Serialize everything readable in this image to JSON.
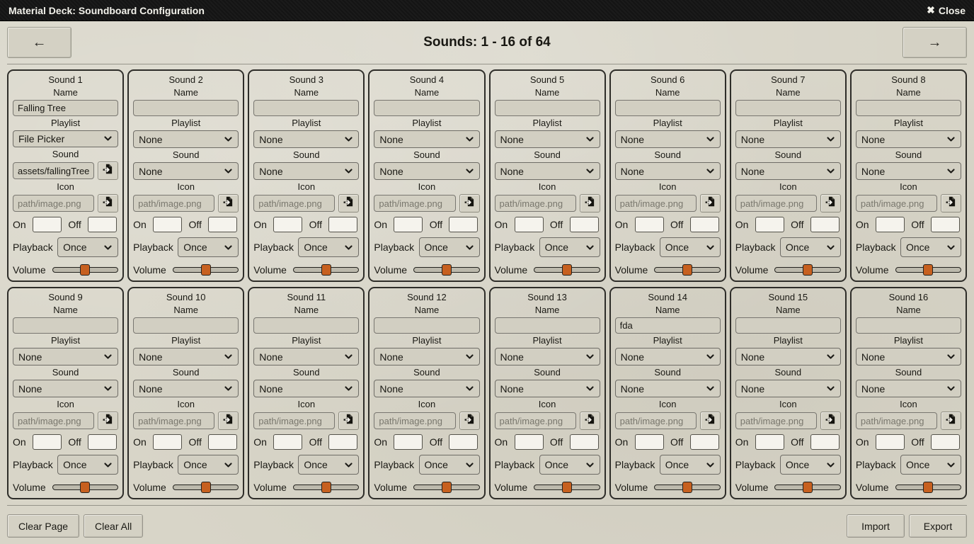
{
  "window": {
    "title": "Material Deck: Soundboard Configuration",
    "close_icon": "✖",
    "close_label": "Close"
  },
  "nav": {
    "prev_icon": "←",
    "next_icon": "→",
    "title": "Sounds: 1 - 16 of 64"
  },
  "labels": {
    "name": "Name",
    "playlist": "Playlist",
    "sound": "Sound",
    "icon": "Icon",
    "on": "On",
    "off": "Off",
    "playback": "Playback",
    "volume": "Volume"
  },
  "defaults": {
    "icon_placeholder": "path/image.png"
  },
  "footer": {
    "clear_page": "Clear Page",
    "clear_all": "Clear All",
    "import": "Import",
    "export": "Export"
  },
  "colors": {
    "on_active_green": "#2ce02c",
    "swatch_black": "#000000",
    "slider_thumb_orange": "#c7601f"
  },
  "sounds": [
    {
      "title": "Sound 1",
      "name": "Falling Tree",
      "playlist": "File Picker",
      "sound_mode": "file",
      "sound_file": "assets/fallingTree",
      "sound_option": "None",
      "on_color": "#2ce02c",
      "off_color": "#000000",
      "playback": "Once",
      "volume": 50
    },
    {
      "title": "Sound 2",
      "name": "",
      "playlist": "None",
      "sound_mode": "select",
      "sound_file": "",
      "sound_option": "None",
      "on_color": "#000000",
      "off_color": "#000000",
      "playback": "Once",
      "volume": 50
    },
    {
      "title": "Sound 3",
      "name": "",
      "playlist": "None",
      "sound_mode": "select",
      "sound_file": "",
      "sound_option": "None",
      "on_color": "#000000",
      "off_color": "#000000",
      "playback": "Once",
      "volume": 50
    },
    {
      "title": "Sound 4",
      "name": "",
      "playlist": "None",
      "sound_mode": "select",
      "sound_file": "",
      "sound_option": "None",
      "on_color": "#000000",
      "off_color": "#000000",
      "playback": "Once",
      "volume": 50
    },
    {
      "title": "Sound 5",
      "name": "",
      "playlist": "None",
      "sound_mode": "select",
      "sound_file": "",
      "sound_option": "None",
      "on_color": "#000000",
      "off_color": "#000000",
      "playback": "Once",
      "volume": 50
    },
    {
      "title": "Sound 6",
      "name": "",
      "playlist": "None",
      "sound_mode": "select",
      "sound_file": "",
      "sound_option": "None",
      "on_color": "#000000",
      "off_color": "#000000",
      "playback": "Once",
      "volume": 50
    },
    {
      "title": "Sound 7",
      "name": "",
      "playlist": "None",
      "sound_mode": "select",
      "sound_file": "",
      "sound_option": "None",
      "on_color": "#000000",
      "off_color": "#000000",
      "playback": "Once",
      "volume": 50
    },
    {
      "title": "Sound 8",
      "name": "",
      "playlist": "None",
      "sound_mode": "select",
      "sound_file": "",
      "sound_option": "None",
      "on_color": "#000000",
      "off_color": "#000000",
      "playback": "Once",
      "volume": 50
    },
    {
      "title": "Sound 9",
      "name": "",
      "playlist": "None",
      "sound_mode": "select",
      "sound_file": "",
      "sound_option": "None",
      "on_color": "#000000",
      "off_color": "#000000",
      "playback": "Once",
      "volume": 50
    },
    {
      "title": "Sound 10",
      "name": "",
      "playlist": "None",
      "sound_mode": "select",
      "sound_file": "",
      "sound_option": "None",
      "on_color": "#000000",
      "off_color": "#000000",
      "playback": "Once",
      "volume": 50
    },
    {
      "title": "Sound 11",
      "name": "",
      "playlist": "None",
      "sound_mode": "select",
      "sound_file": "",
      "sound_option": "None",
      "on_color": "#000000",
      "off_color": "#000000",
      "playback": "Once",
      "volume": 50
    },
    {
      "title": "Sound 12",
      "name": "",
      "playlist": "None",
      "sound_mode": "select",
      "sound_file": "",
      "sound_option": "None",
      "on_color": "#000000",
      "off_color": "#000000",
      "playback": "Once",
      "volume": 50
    },
    {
      "title": "Sound 13",
      "name": "",
      "playlist": "None",
      "sound_mode": "select",
      "sound_file": "",
      "sound_option": "None",
      "on_color": "#000000",
      "off_color": "#000000",
      "playback": "Once",
      "volume": 50
    },
    {
      "title": "Sound 14",
      "name": "fda",
      "playlist": "None",
      "sound_mode": "select",
      "sound_file": "",
      "sound_option": "None",
      "on_color": "#000000",
      "off_color": "#000000",
      "playback": "Once",
      "volume": 50
    },
    {
      "title": "Sound 15",
      "name": "",
      "playlist": "None",
      "sound_mode": "select",
      "sound_file": "",
      "sound_option": "None",
      "on_color": "#000000",
      "off_color": "#000000",
      "playback": "Once",
      "volume": 50
    },
    {
      "title": "Sound 16",
      "name": "",
      "playlist": "None",
      "sound_mode": "select",
      "sound_file": "",
      "sound_option": "None",
      "on_color": "#000000",
      "off_color": "#000000",
      "playback": "Once",
      "volume": 50
    }
  ]
}
